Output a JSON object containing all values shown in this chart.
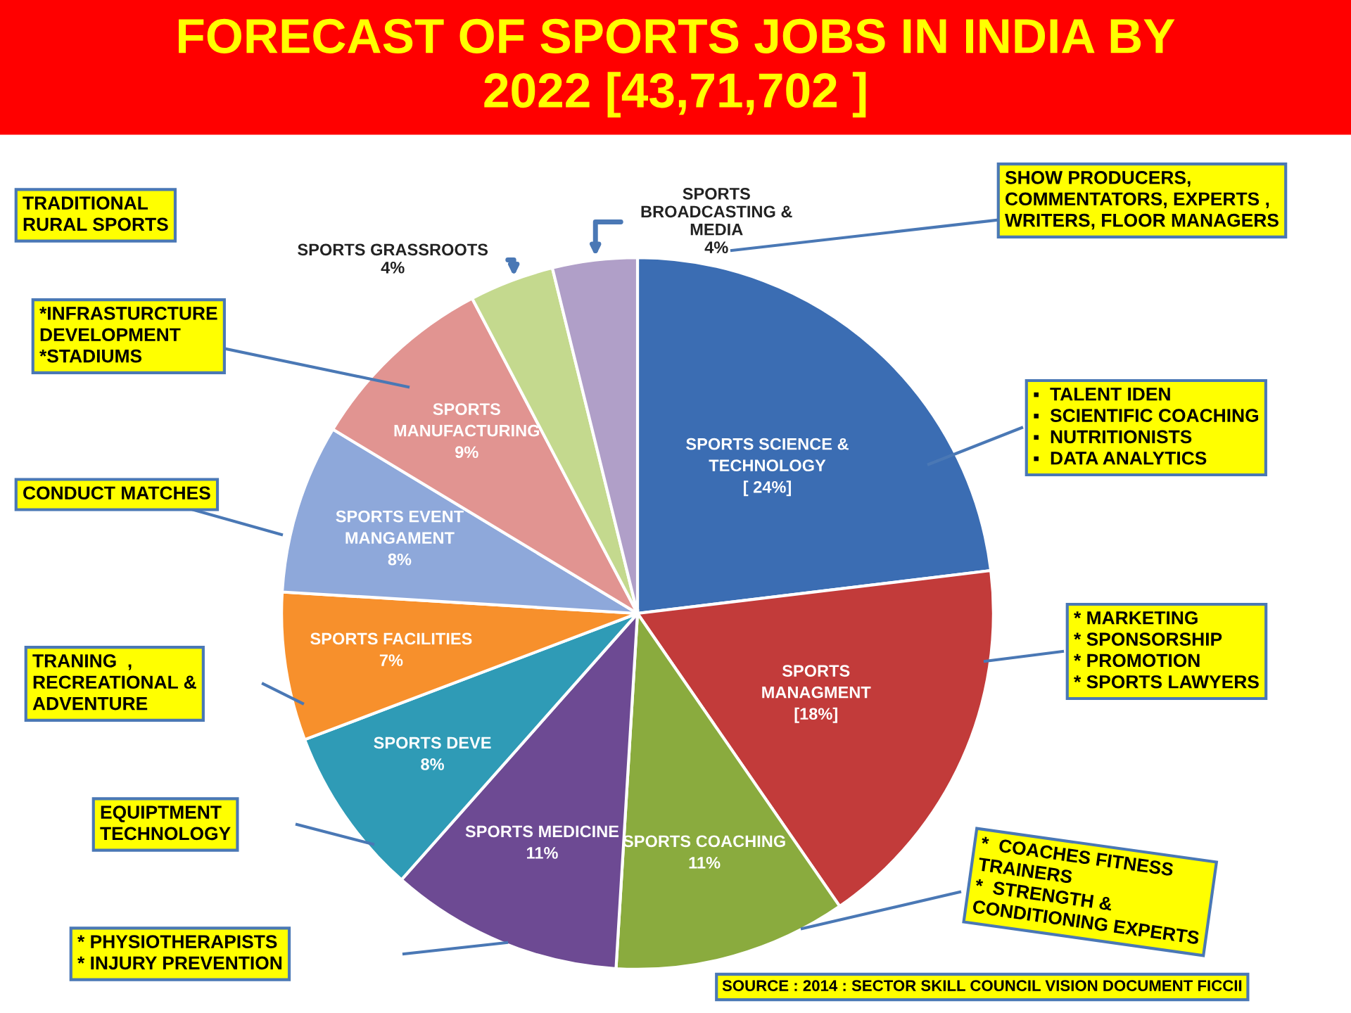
{
  "chart_data": {
    "type": "pie",
    "title": "FORECAST OF SPORTS JOBS IN INDIA BY\n2022 [43,71,702 ]",
    "categories": [
      "SPORTS SCIENCE &\nTECHNOLOGY",
      "SPORTS\nMANAGMENT",
      "SPORTS COACHING",
      "SPORTS MEDICINE",
      "SPORTS DEVE",
      "SPORTS FACILITIES",
      "SPORTS EVENT\nMANGAMENT",
      "SPORTS\nMANUFACTURING",
      "SPORTS GRASSROOTS",
      "SPORTS\nBROADCASTING &\nMEDIA"
    ],
    "values": [
      24,
      18,
      11,
      11,
      8,
      7,
      8,
      9,
      4,
      4
    ],
    "value_labels": [
      "[ 24%]",
      "[18%]",
      "11%",
      "11%",
      "8%",
      "7%",
      "8%",
      "9%",
      "4%",
      "4%"
    ],
    "colors": [
      "#3b6db3",
      "#c23b3a",
      "#8aab3e",
      "#6d4a93",
      "#2f9bb6",
      "#f7902c",
      "#8ea8da",
      "#e19491",
      "#c4d98e",
      "#b09fc8"
    ],
    "annotations": [
      "TRADITIONAL\nRURAL SPORTS",
      "SHOW PRODUCERS,\nCOMMENTATORS, EXPERTS ,\nWRITERS, FLOOR MANAGERS",
      "*INFRASTURCTURE\nDEVELOPMENT\n*STADIUMS",
      "▪  TALENT IDEN\n▪  SCIENTIFIC COACHING\n▪  NUTRITIONISTS\n▪  DATA ANALYTICS",
      "CONDUCT MATCHES",
      "* MARKETING\n* SPONSORSHIP\n* PROMOTION\n* SPORTS LAWYERS",
      "TRANING  ,\nRECREATIONAL &\nADVENTURE",
      "EQUIPTMENT\nTECHNOLOGY",
      "*  COACHES FITNESS\nTRAINERS\n*  STRENGTH &\nCONDITIONING EXPERTS",
      "* PHYSIOTHERAPISTS\n* INJURY PREVENTION",
      "SOURCE : 2014 : SECTOR SKILL COUNCIL VISION DOCUMENT FICCII"
    ]
  }
}
